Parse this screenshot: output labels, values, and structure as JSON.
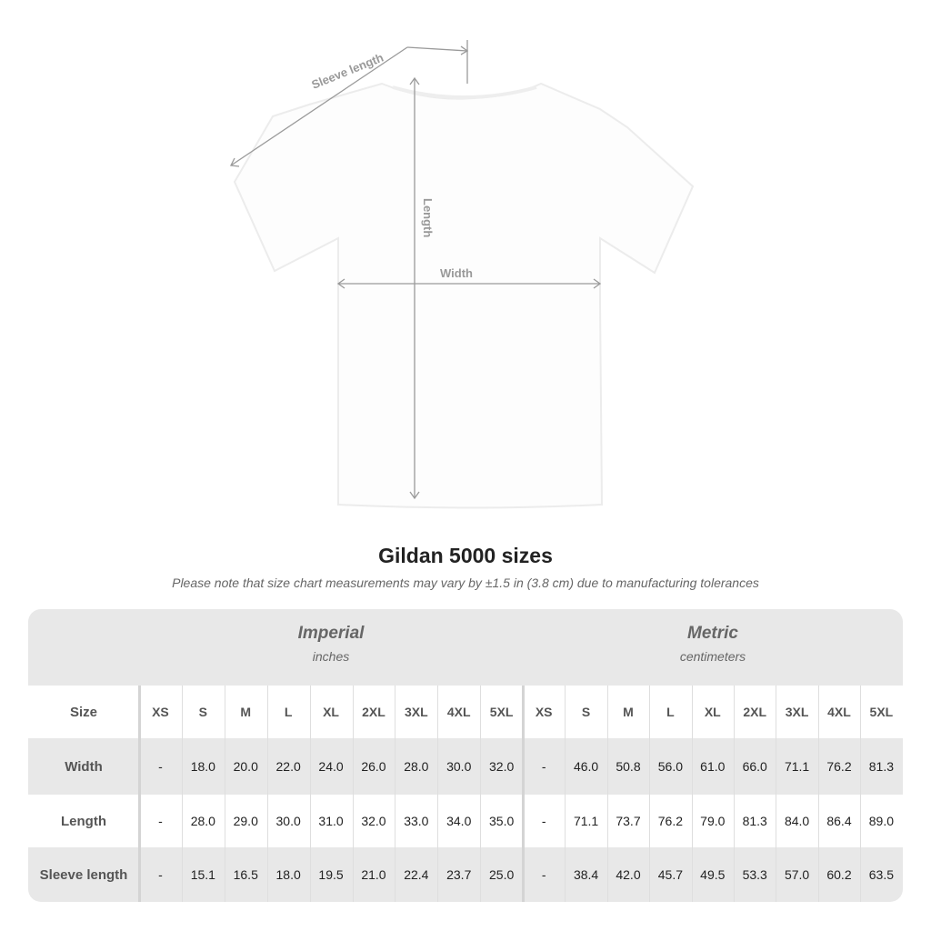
{
  "diagram": {
    "labels": {
      "sleeve": "Sleeve length",
      "length": "Length",
      "width": "Width"
    },
    "line_color": "#9a9a9a"
  },
  "title": "Gildan 5000 sizes",
  "note": "Please note that size chart measurements may vary by ±1.5 in (3.8 cm) due to manufacturing tolerances",
  "table": {
    "imperial": {
      "heading": "Imperial",
      "unit": "inches"
    },
    "metric": {
      "heading": "Metric",
      "unit": "centimeters"
    },
    "size_label": "Size",
    "sizes": [
      "XS",
      "S",
      "M",
      "L",
      "XL",
      "2XL",
      "3XL",
      "4XL",
      "5XL"
    ],
    "rows": [
      {
        "label": "Width",
        "imperial": [
          "-",
          "18.0",
          "20.0",
          "22.0",
          "24.0",
          "26.0",
          "28.0",
          "30.0",
          "32.0"
        ],
        "metric": [
          "-",
          "46.0",
          "50.8",
          "56.0",
          "61.0",
          "66.0",
          "71.1",
          "76.2",
          "81.3"
        ]
      },
      {
        "label": "Length",
        "imperial": [
          "-",
          "28.0",
          "29.0",
          "30.0",
          "31.0",
          "32.0",
          "33.0",
          "34.0",
          "35.0"
        ],
        "metric": [
          "-",
          "71.1",
          "73.7",
          "76.2",
          "79.0",
          "81.3",
          "84.0",
          "86.4",
          "89.0"
        ]
      },
      {
        "label": "Sleeve length",
        "imperial": [
          "-",
          "15.1",
          "16.5",
          "18.0",
          "19.5",
          "21.0",
          "22.4",
          "23.7",
          "25.0"
        ],
        "metric": [
          "-",
          "38.4",
          "42.0",
          "45.7",
          "49.5",
          "53.3",
          "57.0",
          "60.2",
          "63.5"
        ]
      }
    ],
    "colors": {
      "band": "#e8e8e8",
      "header_text": "#666666"
    }
  }
}
